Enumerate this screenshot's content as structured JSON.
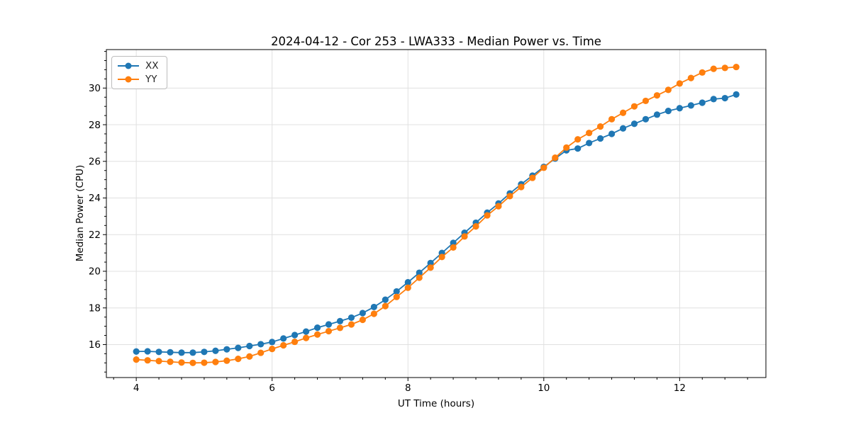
{
  "chart_data": {
    "type": "line",
    "title": "2024-04-12 - Cor 253 - LWA333 - Median Power vs. Time",
    "xlabel": "UT Time (hours)",
    "ylabel": "Median Power (CPU)",
    "xlim": [
      3.56,
      13.27
    ],
    "ylim": [
      14.2,
      32.1
    ],
    "xticks": [
      4,
      6,
      8,
      10,
      12
    ],
    "yticks": [
      16,
      18,
      20,
      22,
      24,
      26,
      28,
      30
    ],
    "x_minor_step": 0.33333,
    "y_minor_step": 0.5,
    "grid": true,
    "legend_position": "upper left",
    "x": [
      4.0,
      4.167,
      4.333,
      4.5,
      4.667,
      4.833,
      5.0,
      5.167,
      5.333,
      5.5,
      5.667,
      5.833,
      6.0,
      6.167,
      6.333,
      6.5,
      6.667,
      6.833,
      7.0,
      7.167,
      7.333,
      7.5,
      7.667,
      7.833,
      8.0,
      8.167,
      8.333,
      8.5,
      8.667,
      8.833,
      9.0,
      9.167,
      9.333,
      9.5,
      9.667,
      9.833,
      10.0,
      10.167,
      10.333,
      10.5,
      10.667,
      10.833,
      11.0,
      11.167,
      11.333,
      11.5,
      11.667,
      11.833,
      12.0,
      12.167,
      12.333,
      12.5,
      12.667,
      12.833
    ],
    "series": [
      {
        "name": "XX",
        "color": "#1f77b4",
        "values": [
          15.62,
          15.63,
          15.6,
          15.58,
          15.56,
          15.56,
          15.6,
          15.66,
          15.74,
          15.82,
          15.92,
          16.02,
          16.14,
          16.33,
          16.52,
          16.71,
          16.92,
          17.1,
          17.28,
          17.47,
          17.72,
          18.05,
          18.45,
          18.9,
          19.4,
          19.92,
          20.45,
          21.0,
          21.55,
          22.1,
          22.65,
          23.2,
          23.7,
          24.25,
          24.75,
          25.22,
          25.7,
          26.15,
          26.6,
          26.7,
          27.0,
          27.25,
          27.5,
          27.8,
          28.05,
          28.3,
          28.55,
          28.75,
          28.9,
          29.05,
          29.2,
          29.4,
          29.45,
          29.65
        ]
      },
      {
        "name": "YY",
        "color": "#ff7f0e",
        "values": [
          15.18,
          15.14,
          15.1,
          15.06,
          15.02,
          15.0,
          15.01,
          15.05,
          15.12,
          15.22,
          15.35,
          15.55,
          15.76,
          15.96,
          16.15,
          16.36,
          16.55,
          16.73,
          16.91,
          17.1,
          17.35,
          17.68,
          18.1,
          18.6,
          19.1,
          19.65,
          20.2,
          20.78,
          21.3,
          21.9,
          22.45,
          23.05,
          23.55,
          24.1,
          24.6,
          25.1,
          25.65,
          26.2,
          26.75,
          27.2,
          27.55,
          27.9,
          28.3,
          28.65,
          29.0,
          29.3,
          29.6,
          29.9,
          30.25,
          30.55,
          30.85,
          31.05,
          31.1,
          31.15
        ]
      }
    ]
  },
  "style": {
    "grid_color": "#e0e0e0",
    "spine_color": "#000000",
    "background": "#ffffff",
    "marker_radius": 4.6,
    "line_width": 1.8
  }
}
